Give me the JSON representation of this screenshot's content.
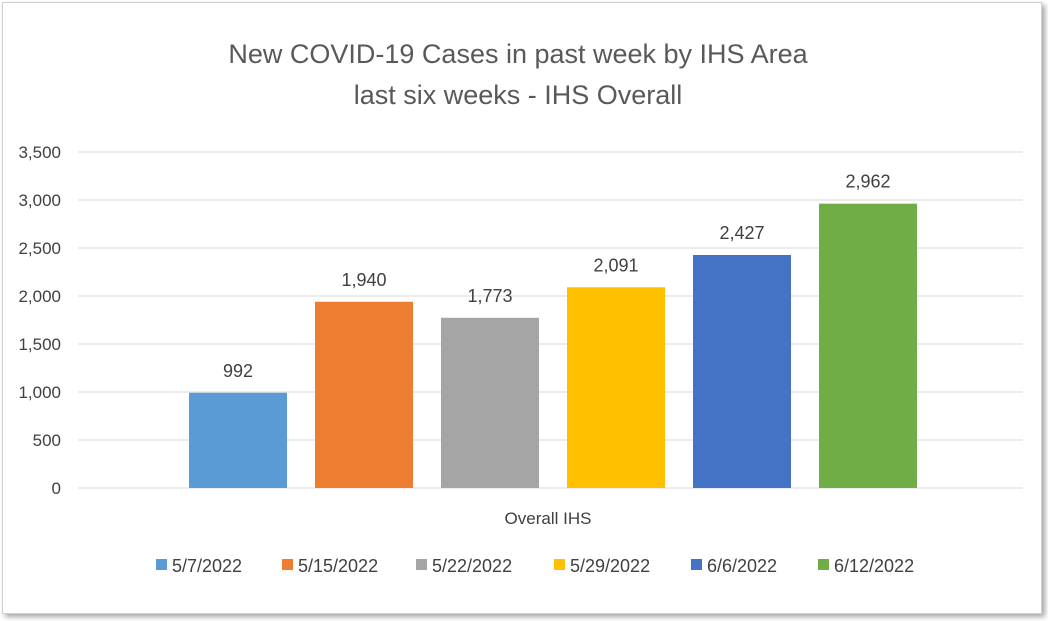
{
  "chart_data": {
    "type": "bar",
    "title_lines": [
      "New COVID-19 Cases in past week by IHS Area",
      "last six weeks - IHS Overall"
    ],
    "categories": [
      "Overall IHS"
    ],
    "series": [
      {
        "name": "5/7/2022",
        "values": [
          992
        ],
        "label": "992",
        "color": "#5b9bd5"
      },
      {
        "name": "5/15/2022",
        "values": [
          1940
        ],
        "label": "1,940",
        "color": "#ed7d31"
      },
      {
        "name": "5/22/2022",
        "values": [
          1773
        ],
        "label": "1,773",
        "color": "#a5a5a5"
      },
      {
        "name": "5/29/2022",
        "values": [
          2091
        ],
        "label": "2,091",
        "color": "#ffc000"
      },
      {
        "name": "6/6/2022",
        "values": [
          2427
        ],
        "label": "2,427",
        "color": "#4472c4"
      },
      {
        "name": "6/12/2022",
        "values": [
          2962
        ],
        "label": "2,962",
        "color": "#70ad47"
      }
    ],
    "y_ticks": [
      {
        "value": 0,
        "label": "0"
      },
      {
        "value": 500,
        "label": "500"
      },
      {
        "value": 1000,
        "label": "1,000"
      },
      {
        "value": 1500,
        "label": "1,500"
      },
      {
        "value": 2000,
        "label": "2,000"
      },
      {
        "value": 2500,
        "label": "2,500"
      },
      {
        "value": 3000,
        "label": "3,000"
      },
      {
        "value": 3500,
        "label": "3,500"
      }
    ],
    "ylim": [
      0,
      3500
    ],
    "grid": true,
    "legend": "bottom",
    "xlabel": "",
    "ylabel": ""
  }
}
